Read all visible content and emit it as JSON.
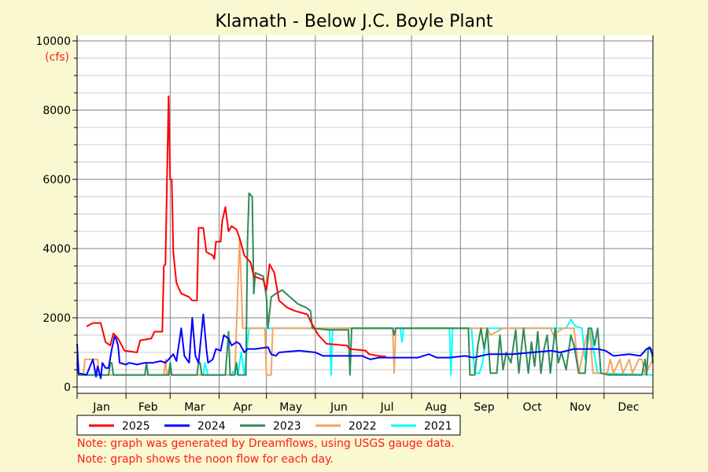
{
  "chart_data": {
    "type": "line",
    "title": "Klamath - Below J.C. Boyle Plant",
    "ylabel": "(cfs)",
    "xlabel": "",
    "ylim": [
      0,
      10000
    ],
    "yticks": [
      "0",
      "2000",
      "4000",
      "6000",
      "8000",
      "10000"
    ],
    "ytick_values": [
      0,
      2000,
      4000,
      6000,
      8000,
      10000
    ],
    "x_unit": "day of year",
    "xlim": [
      0,
      365
    ],
    "month_labels": [
      "Jan",
      "Feb",
      "Mar",
      "Apr",
      "May",
      "Jun",
      "Jul",
      "Aug",
      "Sep",
      "Oct",
      "Nov",
      "Dec"
    ],
    "grid": true,
    "legend_position": "bottom",
    "series": [
      {
        "name": "2025",
        "color": "#FF0000",
        "points": [
          [
            6,
            1750
          ],
          [
            10,
            1850
          ],
          [
            15,
            1850
          ],
          [
            18,
            1300
          ],
          [
            21,
            1200
          ],
          [
            23,
            1550
          ],
          [
            26,
            1400
          ],
          [
            30,
            1050
          ],
          [
            38,
            1000
          ],
          [
            40,
            1350
          ],
          [
            47,
            1400
          ],
          [
            49,
            1600
          ],
          [
            54,
            1600
          ],
          [
            55,
            3500
          ],
          [
            56,
            3550
          ],
          [
            57,
            6000
          ],
          [
            58,
            8400
          ],
          [
            59,
            6000
          ],
          [
            60,
            6000
          ],
          [
            61,
            3900
          ],
          [
            63,
            3000
          ],
          [
            66,
            2700
          ],
          [
            71,
            2600
          ],
          [
            73,
            2500
          ],
          [
            76,
            2500
          ],
          [
            77,
            4600
          ],
          [
            80,
            4600
          ],
          [
            82,
            3900
          ],
          [
            86,
            3800
          ],
          [
            87,
            3700
          ],
          [
            88,
            4200
          ],
          [
            91,
            4200
          ],
          [
            92,
            4800
          ],
          [
            94,
            5200
          ],
          [
            96,
            4500
          ],
          [
            98,
            4650
          ],
          [
            101,
            4550
          ],
          [
            103,
            4300
          ],
          [
            106,
            3800
          ],
          [
            110,
            3600
          ],
          [
            112,
            3200
          ],
          [
            118,
            3100
          ],
          [
            120,
            2800
          ],
          [
            122,
            3550
          ],
          [
            125,
            3300
          ],
          [
            128,
            2500
          ],
          [
            133,
            2300
          ],
          [
            138,
            2200
          ],
          [
            146,
            2100
          ],
          [
            148,
            1900
          ],
          [
            151,
            1650
          ],
          [
            153,
            1500
          ],
          [
            158,
            1250
          ],
          [
            171,
            1200
          ],
          [
            173,
            1100
          ],
          [
            183,
            1050
          ],
          [
            185,
            950
          ],
          [
            191,
            900
          ],
          [
            196,
            880
          ]
        ]
      },
      {
        "name": "2024",
        "color": "#0000FF",
        "points": [
          [
            0,
            1250
          ],
          [
            1,
            400
          ],
          [
            6,
            350
          ],
          [
            10,
            800
          ],
          [
            12,
            300
          ],
          [
            13,
            600
          ],
          [
            15,
            250
          ],
          [
            16,
            700
          ],
          [
            18,
            550
          ],
          [
            20,
            550
          ],
          [
            22,
            1100
          ],
          [
            24,
            1500
          ],
          [
            26,
            1200
          ],
          [
            27,
            700
          ],
          [
            31,
            650
          ],
          [
            33,
            700
          ],
          [
            38,
            650
          ],
          [
            43,
            700
          ],
          [
            48,
            700
          ],
          [
            53,
            750
          ],
          [
            56,
            700
          ],
          [
            58,
            800
          ],
          [
            61,
            950
          ],
          [
            63,
            750
          ],
          [
            66,
            1700
          ],
          [
            68,
            900
          ],
          [
            71,
            700
          ],
          [
            73,
            2000
          ],
          [
            75,
            900
          ],
          [
            77,
            700
          ],
          [
            80,
            2100
          ],
          [
            82,
            1100
          ],
          [
            83,
            700
          ],
          [
            86,
            800
          ],
          [
            88,
            1100
          ],
          [
            91,
            1050
          ],
          [
            93,
            1500
          ],
          [
            96,
            1400
          ],
          [
            98,
            1200
          ],
          [
            101,
            1300
          ],
          [
            103,
            1250
          ],
          [
            106,
            1000
          ],
          [
            108,
            1100
          ],
          [
            113,
            1100
          ],
          [
            121,
            1150
          ],
          [
            123,
            950
          ],
          [
            126,
            900
          ],
          [
            128,
            1000
          ],
          [
            141,
            1050
          ],
          [
            151,
            1000
          ],
          [
            156,
            900
          ],
          [
            171,
            900
          ],
          [
            181,
            900
          ],
          [
            183,
            850
          ],
          [
            186,
            800
          ],
          [
            191,
            850
          ],
          [
            201,
            850
          ],
          [
            216,
            850
          ],
          [
            223,
            950
          ],
          [
            228,
            850
          ],
          [
            236,
            850
          ],
          [
            246,
            900
          ],
          [
            251,
            850
          ],
          [
            261,
            950
          ],
          [
            276,
            950
          ],
          [
            301,
            1050
          ],
          [
            306,
            1000
          ],
          [
            315,
            1100
          ],
          [
            330,
            1100
          ],
          [
            335,
            1050
          ],
          [
            340,
            900
          ],
          [
            350,
            950
          ],
          [
            357,
            900
          ],
          [
            361,
            1100
          ],
          [
            363,
            1150
          ],
          [
            365,
            900
          ]
        ]
      },
      {
        "name": "2023",
        "color": "#2E8B57",
        "points": [
          [
            0,
            700
          ],
          [
            1,
            350
          ],
          [
            20,
            350
          ],
          [
            21,
            700
          ],
          [
            22,
            700
          ],
          [
            23,
            350
          ],
          [
            43,
            350
          ],
          [
            44,
            700
          ],
          [
            45,
            350
          ],
          [
            58,
            350
          ],
          [
            59,
            700
          ],
          [
            60,
            350
          ],
          [
            76,
            350
          ],
          [
            77,
            700
          ],
          [
            78,
            700
          ],
          [
            79,
            350
          ],
          [
            94,
            350
          ],
          [
            96,
            1600
          ],
          [
            97,
            350
          ],
          [
            100,
            350
          ],
          [
            101,
            700
          ],
          [
            102,
            350
          ],
          [
            107,
            350
          ],
          [
            108,
            4200
          ],
          [
            109,
            5600
          ],
          [
            111,
            5500
          ],
          [
            112,
            2700
          ],
          [
            113,
            3300
          ],
          [
            118,
            3200
          ],
          [
            120,
            2600
          ],
          [
            121,
            1700
          ],
          [
            123,
            2600
          ],
          [
            126,
            2700
          ],
          [
            130,
            2800
          ],
          [
            135,
            2600
          ],
          [
            140,
            2400
          ],
          [
            145,
            2300
          ],
          [
            148,
            2200
          ],
          [
            149,
            1700
          ],
          [
            160,
            1650
          ],
          [
            172,
            1650
          ],
          [
            173,
            350
          ],
          [
            174,
            1700
          ],
          [
            200,
            1700
          ],
          [
            201,
            1500
          ],
          [
            202,
            1700
          ],
          [
            248,
            1700
          ],
          [
            249,
            350
          ],
          [
            252,
            350
          ],
          [
            254,
            1200
          ],
          [
            256,
            1700
          ],
          [
            258,
            1100
          ],
          [
            260,
            1700
          ],
          [
            262,
            400
          ],
          [
            266,
            400
          ],
          [
            268,
            1500
          ],
          [
            270,
            500
          ],
          [
            272,
            1000
          ],
          [
            275,
            700
          ],
          [
            278,
            1650
          ],
          [
            280,
            400
          ],
          [
            283,
            1700
          ],
          [
            286,
            400
          ],
          [
            288,
            1300
          ],
          [
            290,
            600
          ],
          [
            292,
            1600
          ],
          [
            294,
            400
          ],
          [
            296,
            1100
          ],
          [
            298,
            1500
          ],
          [
            300,
            400
          ],
          [
            303,
            1700
          ],
          [
            305,
            700
          ],
          [
            307,
            1000
          ],
          [
            310,
            500
          ],
          [
            313,
            1500
          ],
          [
            315,
            1200
          ],
          [
            318,
            400
          ],
          [
            322,
            400
          ],
          [
            324,
            1700
          ],
          [
            326,
            1700
          ],
          [
            328,
            1200
          ],
          [
            330,
            1700
          ],
          [
            332,
            400
          ],
          [
            337,
            350
          ],
          [
            358,
            350
          ],
          [
            360,
            800
          ],
          [
            361,
            350
          ],
          [
            362,
            1100
          ],
          [
            364,
            1100
          ],
          [
            365,
            700
          ]
        ]
      },
      {
        "name": "2022",
        "color": "#F4A460",
        "points": [
          [
            0,
            350
          ],
          [
            4,
            350
          ],
          [
            5,
            800
          ],
          [
            13,
            800
          ],
          [
            14,
            350
          ],
          [
            55,
            350
          ],
          [
            56,
            800
          ],
          [
            57,
            350
          ],
          [
            100,
            350
          ],
          [
            101,
            1700
          ],
          [
            103,
            4300
          ],
          [
            105,
            1700
          ],
          [
            119,
            1700
          ],
          [
            120,
            350
          ],
          [
            123,
            350
          ],
          [
            124,
            1700
          ],
          [
            200,
            1700
          ],
          [
            201,
            400
          ],
          [
            202,
            1700
          ],
          [
            260,
            1700
          ],
          [
            262,
            1500
          ],
          [
            270,
            1700
          ],
          [
            300,
            1700
          ],
          [
            302,
            1500
          ],
          [
            308,
            1700
          ],
          [
            315,
            1700
          ],
          [
            318,
            400
          ],
          [
            323,
            1500
          ],
          [
            325,
            1600
          ],
          [
            327,
            400
          ],
          [
            336,
            400
          ],
          [
            338,
            800
          ],
          [
            340,
            400
          ],
          [
            344,
            800
          ],
          [
            346,
            400
          ],
          [
            350,
            800
          ],
          [
            352,
            400
          ],
          [
            356,
            800
          ],
          [
            358,
            800
          ],
          [
            360,
            350
          ],
          [
            365,
            800
          ]
        ]
      },
      {
        "name": "2021",
        "color": "#00FFFF",
        "points": [
          [
            0,
            350
          ],
          [
            80,
            350
          ],
          [
            81,
            700
          ],
          [
            83,
            350
          ],
          [
            98,
            350
          ],
          [
            99,
            450
          ],
          [
            102,
            350
          ],
          [
            104,
            1000
          ],
          [
            106,
            350
          ],
          [
            109,
            1700
          ],
          [
            160,
            1700
          ],
          [
            161,
            350
          ],
          [
            162,
            1700
          ],
          [
            205,
            1700
          ],
          [
            206,
            1300
          ],
          [
            207,
            1700
          ],
          [
            236,
            1700
          ],
          [
            237,
            350
          ],
          [
            238,
            1700
          ],
          [
            250,
            1700
          ],
          [
            252,
            400
          ],
          [
            255,
            400
          ],
          [
            257,
            700
          ],
          [
            260,
            1700
          ],
          [
            310,
            1700
          ],
          [
            313,
            1950
          ],
          [
            316,
            1750
          ],
          [
            320,
            1700
          ],
          [
            322,
            800
          ],
          [
            325,
            1650
          ],
          [
            330,
            400
          ],
          [
            365,
            350
          ]
        ]
      }
    ]
  },
  "notes": [
    "Note: graph was generated by Dreamflows, using USGS gauge data.",
    "Note: graph shows the noon flow for each day."
  ]
}
